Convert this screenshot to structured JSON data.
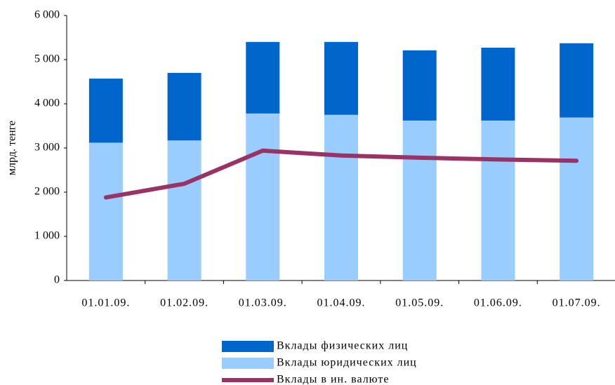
{
  "chart_data": {
    "type": "bar",
    "stacked": true,
    "y_label": "млрд. тенге",
    "categories": [
      "01.01.09.",
      "01.02.09.",
      "01.03.09.",
      "01.04.09.",
      "01.05.09.",
      "01.06.09.",
      "01.07.09."
    ],
    "series": [
      {
        "name": "Вклады физических лиц",
        "type": "bar",
        "color": "#0066cc",
        "values": [
          1450,
          1530,
          1620,
          1650,
          1590,
          1650,
          1680
        ]
      },
      {
        "name": "Вклады юридических лиц",
        "type": "bar",
        "color": "#99ccff",
        "values": [
          3120,
          3170,
          3780,
          3750,
          3620,
          3620,
          3690
        ]
      },
      {
        "name": "Вклады в ин. валюте",
        "type": "line",
        "color": "#993366",
        "values": [
          1880,
          2190,
          2940,
          2830,
          2780,
          2740,
          2710
        ]
      }
    ],
    "ylim": [
      0,
      6000
    ],
    "yticks": [
      0,
      {
        "value": 1000,
        "label": "1 000"
      },
      {
        "value": 2000,
        "label": "2 000"
      },
      {
        "value": 3000,
        "label": "3 000"
      },
      {
        "value": 4000,
        "label": "4 000"
      },
      {
        "value": 5000,
        "label": "5 000"
      },
      {
        "value": 6000,
        "label": "6 000"
      }
    ],
    "grid": false
  }
}
